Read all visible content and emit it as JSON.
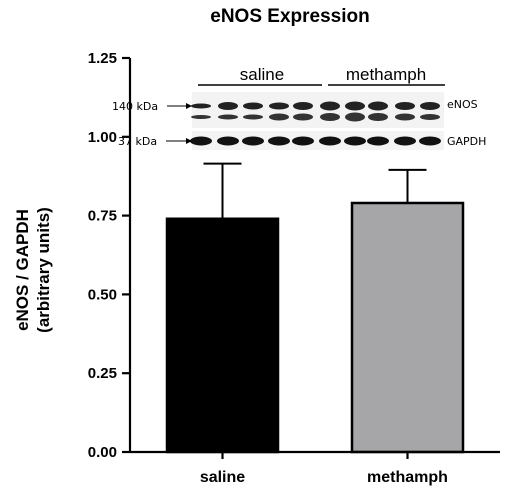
{
  "chart_data": {
    "type": "bar",
    "title": "eNOS Expression",
    "ylabel_line1": "eNOS / GAPDH",
    "ylabel_line2": "(arbitrary units)",
    "categories": [
      "saline",
      "methamph"
    ],
    "values": [
      0.74,
      0.79
    ],
    "error_upper": [
      0.915,
      0.895
    ],
    "bar_colors": [
      "#000000",
      "#a6a6a8"
    ],
    "ylim": [
      0,
      1.25
    ],
    "yticks": [
      "0.00",
      "0.25",
      "0.50",
      "0.75",
      "1.00",
      "1.25"
    ],
    "grid": false,
    "inset_blot": {
      "group_labels": [
        "saline",
        "methamph"
      ],
      "marker_labels": [
        "140 kDa",
        "37 kDa"
      ],
      "band_labels": [
        "eNOS",
        "GAPDH"
      ]
    }
  }
}
